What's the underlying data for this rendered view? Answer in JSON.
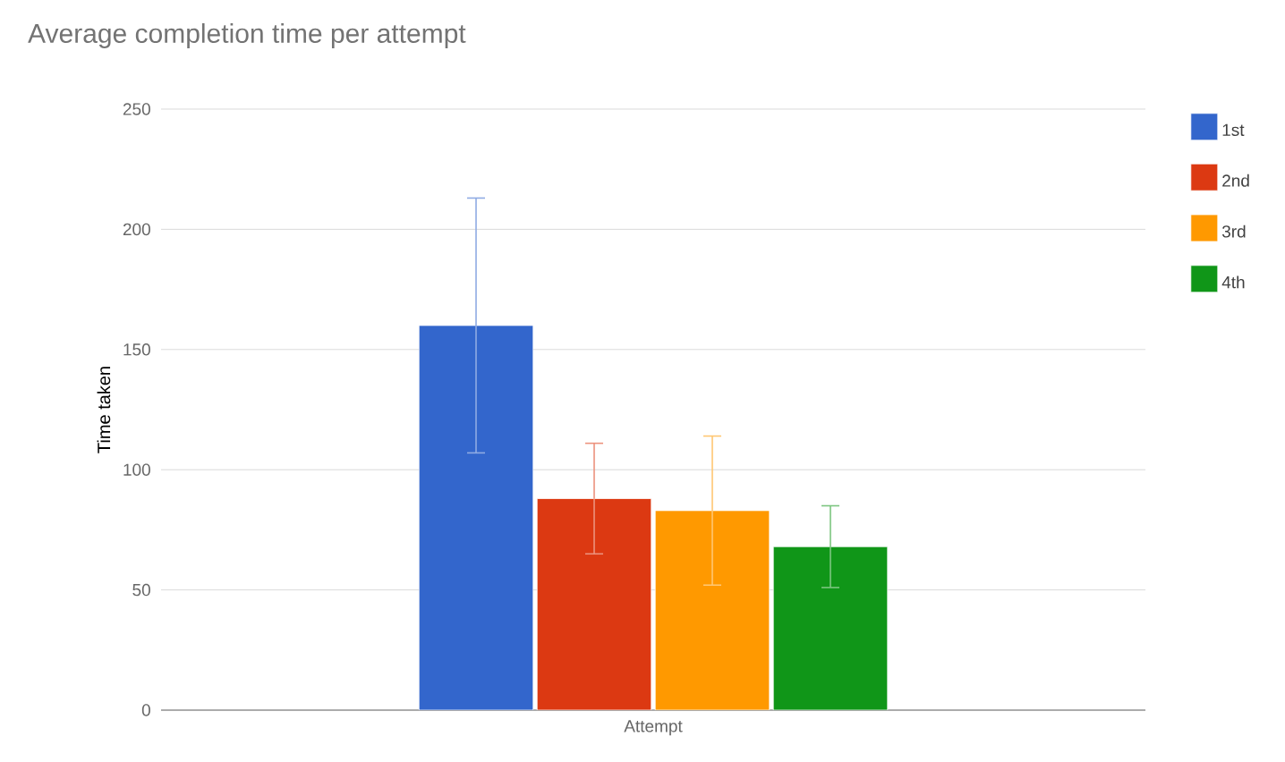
{
  "chart_data": {
    "type": "bar",
    "title": "Average completion time per attempt",
    "ylabel": "Time taken",
    "categories": [
      "Attempt"
    ],
    "series": [
      {
        "name": "1st",
        "color": "#3366cc",
        "values": [
          160
        ],
        "errors": [
          53
        ]
      },
      {
        "name": "2nd",
        "color": "#dc3912",
        "values": [
          88
        ],
        "errors": [
          23
        ]
      },
      {
        "name": "3rd",
        "color": "#ff9900",
        "values": [
          83
        ],
        "errors": [
          31
        ]
      },
      {
        "name": "4th",
        "color": "#109618",
        "values": [
          68
        ],
        "errors": [
          17
        ]
      }
    ],
    "ylim": [
      0,
      250
    ],
    "yticks": [
      0,
      50,
      100,
      150,
      200,
      250
    ],
    "grid": "y",
    "legend": "top right"
  }
}
